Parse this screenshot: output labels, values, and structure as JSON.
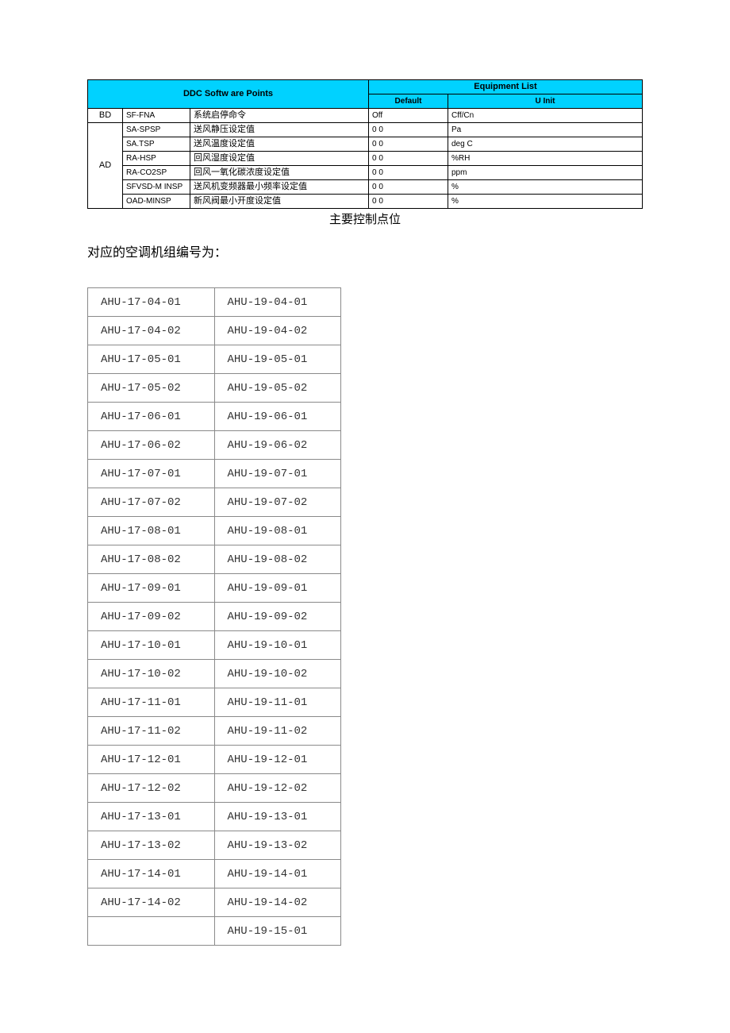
{
  "ddc": {
    "header": {
      "left": "DDC Softw are Points",
      "right": "Equipment List",
      "default": "Default",
      "unit": "U Init"
    },
    "colors": {
      "header_bg": "#00d2ff",
      "border": "#000000",
      "ahu_border": "#8a8a8a",
      "page_bg": "#ffffff"
    },
    "rows": [
      {
        "cat": "BD",
        "code": "SF-FNA",
        "desc": "系统启停命令",
        "def": "Off",
        "unit": "Cff/Cn"
      },
      {
        "cat": "AD",
        "code": "SA-SPSP",
        "desc": "送风静压设定值",
        "def": "0 0",
        "unit": "Pa"
      },
      {
        "cat": "",
        "code": "SA.TSP",
        "desc": "送风温度设定值",
        "def": "0 0",
        "unit": "deg C"
      },
      {
        "cat": "",
        "code": "RA-HSP",
        "desc": "回风湿度设定值",
        "def": "0 0",
        "unit": "%RH"
      },
      {
        "cat": "",
        "code": "RA-CO2SP",
        "desc": "回风一氧化碳浓度设定值",
        "def": "0 0",
        "unit": "ppm"
      },
      {
        "cat": "",
        "code": "SFVSD-M INSP",
        "desc": "送风机变频器最小频率设定值",
        "def": "0 0",
        "unit": "%"
      },
      {
        "cat": "",
        "code": "OAD-MINSP",
        "desc": "新风阀最小开度设定值",
        "def": "0 0",
        "unit": "%"
      }
    ],
    "caption": "主要控制点位"
  },
  "intro_text": "对应的空调机组编号为：",
  "ahu": {
    "rows": [
      [
        "AHU-17-04-01",
        "AHU-19-04-01"
      ],
      [
        "AHU-17-04-02",
        "AHU-19-04-02"
      ],
      [
        "AHU-17-05-01",
        "AHU-19-05-01"
      ],
      [
        "AHU-17-05-02",
        "AHU-19-05-02"
      ],
      [
        "AHU-17-06-01",
        "AHU-19-06-01"
      ],
      [
        "AHU-17-06-02",
        "AHU-19-06-02"
      ],
      [
        "AHU-17-07-01",
        "AHU-19-07-01"
      ],
      [
        "AHU-17-07-02",
        "AHU-19-07-02"
      ],
      [
        "AHU-17-08-01",
        "AHU-19-08-01"
      ],
      [
        "AHU-17-08-02",
        "AHU-19-08-02"
      ],
      [
        "AHU-17-09-01",
        "AHU-19-09-01"
      ],
      [
        "AHU-17-09-02",
        "AHU-19-09-02"
      ],
      [
        "AHU-17-10-01",
        "AHU-19-10-01"
      ],
      [
        "AHU-17-10-02",
        "AHU-19-10-02"
      ],
      [
        "AHU-17-11-01",
        "AHU-19-11-01"
      ],
      [
        "AHU-17-11-02",
        "AHU-19-11-02"
      ],
      [
        "AHU-17-12-01",
        "AHU-19-12-01"
      ],
      [
        "AHU-17-12-02",
        "AHU-19-12-02"
      ],
      [
        "AHU-17-13-01",
        "AHU-19-13-01"
      ],
      [
        "AHU-17-13-02",
        "AHU-19-13-02"
      ],
      [
        "AHU-17-14-01",
        "AHU-19-14-01"
      ],
      [
        "AHU-17-14-02",
        "AHU-19-14-02"
      ],
      [
        "",
        "AHU-19-15-01"
      ]
    ]
  }
}
